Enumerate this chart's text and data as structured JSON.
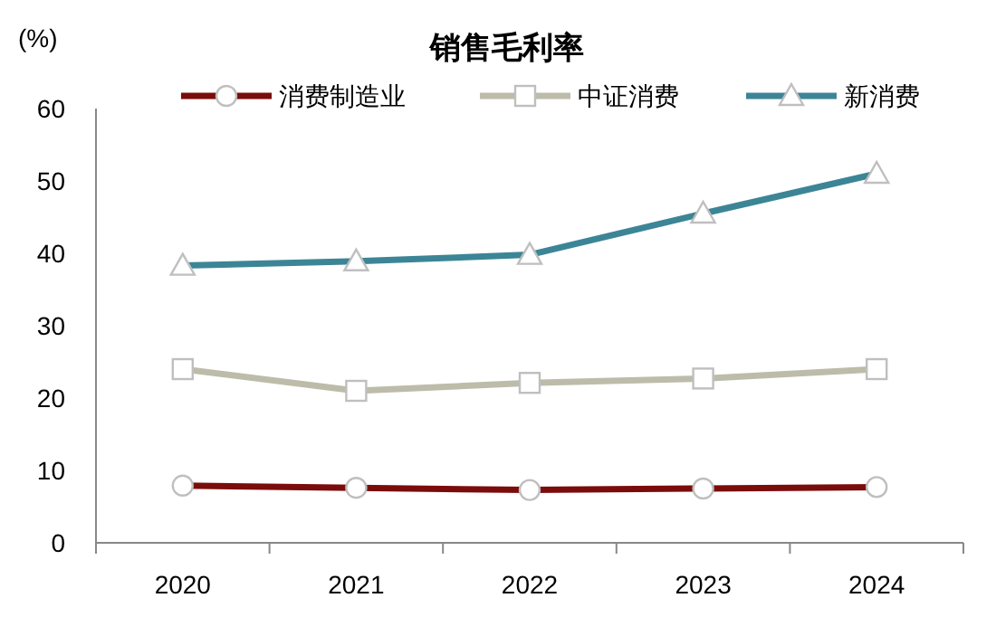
{
  "chart_data": {
    "type": "line",
    "title": "销售毛利率",
    "ylabel": "(%)",
    "categories": [
      "2020",
      "2021",
      "2022",
      "2023",
      "2024"
    ],
    "series": [
      {
        "name": "消费制造业",
        "color": "#7b0c0c",
        "marker": "circle",
        "values": [
          7.9,
          7.6,
          7.3,
          7.5,
          7.7
        ]
      },
      {
        "name": "中证消费",
        "color": "#bdbcaa",
        "marker": "square",
        "values": [
          24.0,
          21.0,
          22.1,
          22.7,
          24.0
        ]
      },
      {
        "name": "新消费",
        "color": "#3c8596",
        "marker": "triangle",
        "values": [
          38.3,
          38.9,
          39.8,
          45.5,
          51.0
        ]
      }
    ],
    "ylim": [
      0,
      60
    ],
    "yticks": [
      0,
      10,
      20,
      30,
      40,
      50,
      60
    ],
    "grid": false,
    "legend": "top"
  }
}
